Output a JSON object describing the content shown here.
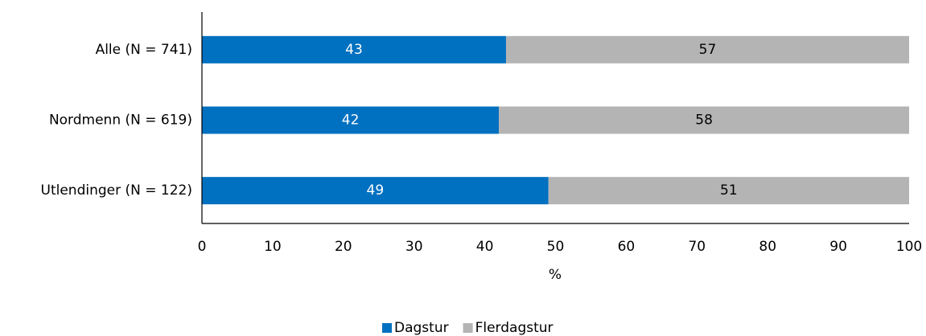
{
  "chart_data": {
    "type": "bar",
    "orientation": "horizontal",
    "stacked": true,
    "categories": [
      "Alle (N = 741)",
      "Nordmenn (N = 619)",
      "Utlendinger (N = 122)"
    ],
    "series": [
      {
        "name": "Dagstur",
        "color": "#0070c0",
        "label_color": "#ffffff",
        "values": [
          43,
          42,
          49
        ]
      },
      {
        "name": "Flerdagstur",
        "color": "#b4b4b4",
        "label_color": "#000000",
        "values": [
          57,
          58,
          51
        ]
      }
    ],
    "x_label": "%",
    "xlim": [
      0,
      100
    ],
    "xticks": [
      0,
      10,
      20,
      30,
      40,
      50,
      60,
      70,
      80,
      90,
      100
    ],
    "grid": false,
    "legend": "bottom"
  }
}
